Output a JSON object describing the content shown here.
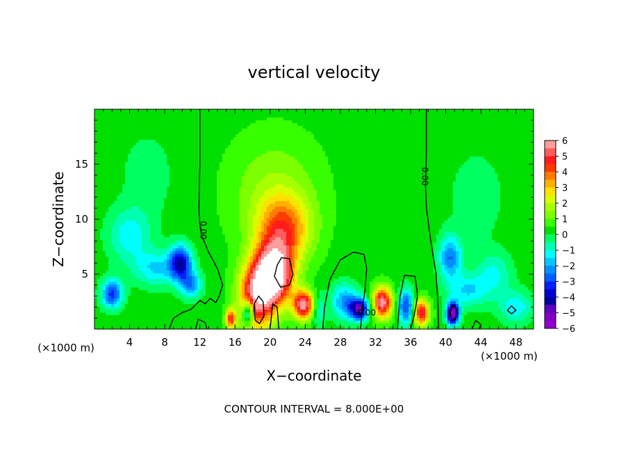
{
  "chart_data": {
    "type": "heatmap",
    "title": "vertical velocity",
    "xlabel": "X−coordinate",
    "ylabel": "Z−coordinate",
    "x_unit_left": "(×1000 m)",
    "x_unit_right": "(×1000 m)",
    "xlim": [
      0,
      50
    ],
    "ylim": [
      0,
      20
    ],
    "x_ticks": [
      4,
      8,
      12,
      16,
      20,
      24,
      28,
      32,
      36,
      40,
      44,
      48
    ],
    "y_ticks": [
      5,
      10,
      15
    ],
    "footer": "CONTOUR INTERVAL = 8.000E+00",
    "contour_label": "0.00",
    "contour_labels": [
      {
        "text": "0.00",
        "x": 12.4,
        "y": 9.0,
        "angle": 90
      },
      {
        "text": "0.00",
        "x": 37.6,
        "y": 13.9,
        "angle": 90
      },
      {
        "text": "0.00",
        "x": 31.0,
        "y": 1.5,
        "angle": 0
      }
    ],
    "colorbar": {
      "ticks": [
        "6",
        "5",
        "4",
        "3",
        "2",
        "1",
        "0",
        "−1",
        "−2",
        "−3",
        "−4",
        "−5",
        "−6"
      ],
      "colors": [
        "#ff9c9c",
        "#ff5c5c",
        "#ff1c1c",
        "#ff3a00",
        "#ff7a00",
        "#ffb000",
        "#ffe000",
        "#d8ff00",
        "#a8ff00",
        "#7cff00",
        "#38ff00",
        "#00e000",
        "#00ff60",
        "#00ffb0",
        "#00ffff",
        "#00c8ff",
        "#0090ff",
        "#0060ff",
        "#0020ff",
        "#0000d0",
        "#0000a0",
        "#6000c0",
        "#8000c0",
        "#9000d0"
      ]
    },
    "background_value": 0.3,
    "features": [
      {
        "x": 2.0,
        "y": 3.2,
        "w": -3.5,
        "sx": 1.2,
        "sy": 1.3
      },
      {
        "x": 4.0,
        "y": 8.5,
        "w": -1.6,
        "sx": 2.5,
        "sy": 2.5
      },
      {
        "x": 7.0,
        "y": 5.5,
        "w": -1.8,
        "sx": 2.5,
        "sy": 1.6
      },
      {
        "x": 9.8,
        "y": 6.0,
        "w": -4.2,
        "sx": 1.3,
        "sy": 1.6
      },
      {
        "x": 11.0,
        "y": 4.0,
        "w": -2.5,
        "sx": 1.2,
        "sy": 1.2
      },
      {
        "x": 15.5,
        "y": 0.9,
        "w": 4.0,
        "sx": 0.6,
        "sy": 0.9
      },
      {
        "x": 17.5,
        "y": 1.5,
        "w": -4.0,
        "sx": 0.6,
        "sy": 1.1
      },
      {
        "x": 18.5,
        "y": 3.0,
        "w": 5.5,
        "sx": 2.0,
        "sy": 3.0
      },
      {
        "x": 20.5,
        "y": 5.0,
        "w": 7.2,
        "sx": 2.0,
        "sy": 2.6
      },
      {
        "x": 21.5,
        "y": 9.0,
        "w": 3.5,
        "sx": 3.0,
        "sy": 3.0
      },
      {
        "x": 20.5,
        "y": 12.5,
        "w": 1.2,
        "sx": 5.0,
        "sy": 5.0
      },
      {
        "x": 23.8,
        "y": 2.2,
        "w": 5.5,
        "sx": 1.2,
        "sy": 1.3
      },
      {
        "x": 25.5,
        "y": 1.8,
        "w": -1.5,
        "sx": 0.8,
        "sy": 1.5
      },
      {
        "x": 28.5,
        "y": 2.5,
        "w": -2.5,
        "sx": 1.5,
        "sy": 1.6
      },
      {
        "x": 30.2,
        "y": 1.8,
        "w": -4.8,
        "sx": 1.1,
        "sy": 1.0
      },
      {
        "x": 32.8,
        "y": 2.4,
        "w": 5.6,
        "sx": 1.1,
        "sy": 1.4
      },
      {
        "x": 35.5,
        "y": 2.0,
        "w": -3.5,
        "sx": 0.9,
        "sy": 1.6
      },
      {
        "x": 37.2,
        "y": 1.5,
        "w": 4.8,
        "sx": 0.9,
        "sy": 1.2
      },
      {
        "x": 40.8,
        "y": 1.4,
        "w": -6.5,
        "sx": 0.7,
        "sy": 1.0
      },
      {
        "x": 40.5,
        "y": 6.5,
        "w": -2.8,
        "sx": 1.3,
        "sy": 2.0
      },
      {
        "x": 42.5,
        "y": 3.5,
        "w": -1.8,
        "sx": 2.2,
        "sy": 1.5
      },
      {
        "x": 45.5,
        "y": 5.0,
        "w": -1.4,
        "sx": 2.0,
        "sy": 2.0
      },
      {
        "x": 48.0,
        "y": 2.0,
        "w": -1.6,
        "sx": 2.0,
        "sy": 1.5
      },
      {
        "x": 43.5,
        "y": 12.0,
        "w": -0.7,
        "sx": 3.0,
        "sy": 4.0
      },
      {
        "x": 6.0,
        "y": 14.0,
        "w": -0.6,
        "sx": 3.0,
        "sy": 4.0
      }
    ],
    "zero_contours": [
      [
        [
          12.0,
          20.0
        ],
        [
          12.0,
          15.0
        ],
        [
          11.9,
          11.0
        ],
        [
          12.0,
          9.5
        ],
        [
          12.2,
          8.5
        ],
        [
          13.0,
          7.0
        ],
        [
          14.0,
          5.5
        ],
        [
          14.6,
          4.0
        ],
        [
          14.2,
          3.0
        ],
        [
          13.8,
          2.4
        ],
        [
          13.2,
          2.8
        ],
        [
          12.6,
          2.3
        ],
        [
          12.0,
          2.6
        ],
        [
          11.0,
          1.8
        ],
        [
          10.0,
          1.5
        ],
        [
          9.0,
          1.0
        ],
        [
          8.5,
          0
        ]
      ],
      [
        [
          37.8,
          20.0
        ],
        [
          37.8,
          16.5
        ],
        [
          37.7,
          13.0
        ],
        [
          37.8,
          11.0
        ],
        [
          38.3,
          8.0
        ],
        [
          38.9,
          5.0
        ],
        [
          39.1,
          2.5
        ],
        [
          39.2,
          0
        ]
      ],
      [
        [
          26.0,
          0
        ],
        [
          26.2,
          2.0
        ],
        [
          26.8,
          4.5
        ],
        [
          28.0,
          6.3
        ],
        [
          29.5,
          7.0
        ],
        [
          30.7,
          6.8
        ],
        [
          31.0,
          5.5
        ],
        [
          30.8,
          3.5
        ],
        [
          30.5,
          1.8
        ],
        [
          30.3,
          0
        ]
      ],
      [
        [
          34.5,
          0
        ],
        [
          34.8,
          3.0
        ],
        [
          35.3,
          4.9
        ],
        [
          36.5,
          4.8
        ],
        [
          36.8,
          3.0
        ],
        [
          36.4,
          1.2
        ],
        [
          36.0,
          0
        ]
      ],
      [
        [
          18.3,
          0.8
        ],
        [
          18.2,
          2.3
        ],
        [
          18.7,
          3.0
        ],
        [
          19.2,
          2.5
        ],
        [
          19.3,
          1.2
        ],
        [
          18.8,
          0.5
        ],
        [
          18.3,
          0.8
        ]
      ],
      [
        [
          20.8,
          5.8
        ],
        [
          20.5,
          4.8
        ],
        [
          21.2,
          3.8
        ],
        [
          22.2,
          4.0
        ],
        [
          22.6,
          5.0
        ],
        [
          22.2,
          6.4
        ],
        [
          21.3,
          6.5
        ],
        [
          20.8,
          5.8
        ]
      ],
      [
        [
          40.5,
          1.6
        ],
        [
          40.7,
          0.8
        ],
        [
          41.1,
          0.9
        ],
        [
          41.2,
          1.8
        ],
        [
          40.9,
          2.2
        ],
        [
          40.5,
          1.6
        ]
      ],
      [
        [
          43.0,
          0
        ],
        [
          43.4,
          0.8
        ],
        [
          44.0,
          0.4
        ],
        [
          43.8,
          0
        ]
      ],
      [
        [
          47.0,
          1.7
        ],
        [
          47.5,
          1.4
        ],
        [
          48.0,
          1.7
        ],
        [
          47.5,
          2.1
        ],
        [
          47.0,
          1.7
        ]
      ],
      [
        [
          11.5,
          0
        ],
        [
          11.8,
          0.9
        ],
        [
          12.6,
          0.6
        ],
        [
          12.8,
          0
        ]
      ],
      [
        [
          20.0,
          0
        ],
        [
          20.3,
          2.3
        ],
        [
          20.8,
          2.0
        ],
        [
          21.0,
          0
        ]
      ]
    ]
  }
}
